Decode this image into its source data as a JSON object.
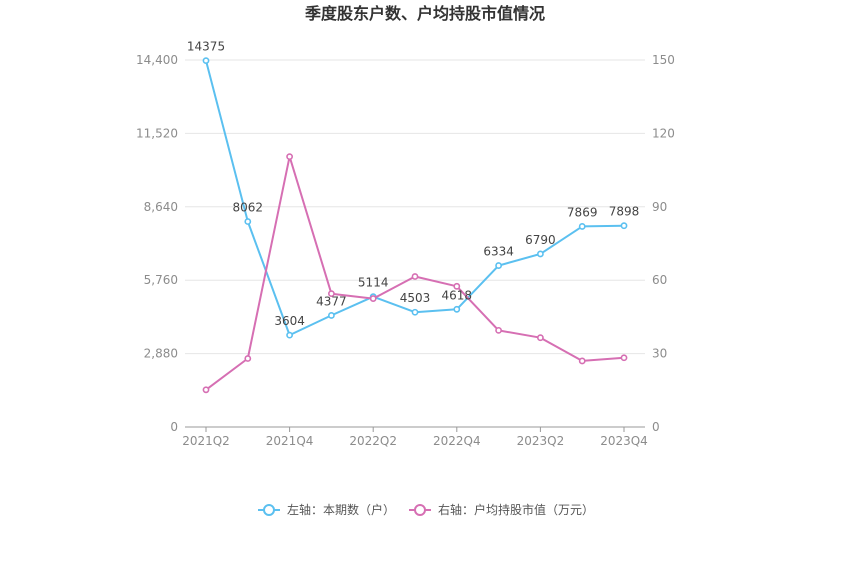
{
  "chart_data": {
    "type": "line",
    "title": "季度股东户数、户均持股市值情况",
    "categories": [
      "2021Q2",
      "2021Q3",
      "2021Q4",
      "2022Q1",
      "2022Q2",
      "2022Q3",
      "2022Q4",
      "2023Q1",
      "2023Q2",
      "2023Q3",
      "2023Q4"
    ],
    "x_tick_labels": [
      "2021Q2",
      "2021Q4",
      "2022Q2",
      "2022Q4",
      "2023Q2",
      "2023Q4"
    ],
    "y_left": {
      "min": 0,
      "max": 14400,
      "ticks": [
        "0",
        "2,880",
        "5,760",
        "8,640",
        "11,520",
        "14,400"
      ]
    },
    "y_right": {
      "min": 0,
      "max": 150,
      "ticks": [
        "0",
        "30",
        "60",
        "90",
        "120",
        "150"
      ]
    },
    "grid": true,
    "legend_position": "bottom",
    "series": [
      {
        "name": "左轴：本期数（户）",
        "axis": "left",
        "color": "#5bc0f0",
        "values": [
          14375,
          8062,
          3604,
          4377,
          5114,
          4503,
          4618,
          6334,
          6790,
          7869,
          7898
        ],
        "labels": [
          "14375",
          "8062",
          "3604",
          "4377",
          "5114",
          "4503",
          "4618",
          "6334",
          "6790",
          "7869",
          "7898"
        ]
      },
      {
        "name": "右轴：户均持股市值（万元）",
        "axis": "right",
        "color": "#d66fb3",
        "values": [
          15.2,
          28.0,
          110.5,
          54.5,
          52.5,
          61.5,
          57.5,
          39.5,
          36.5,
          27.0,
          28.3
        ]
      }
    ]
  }
}
